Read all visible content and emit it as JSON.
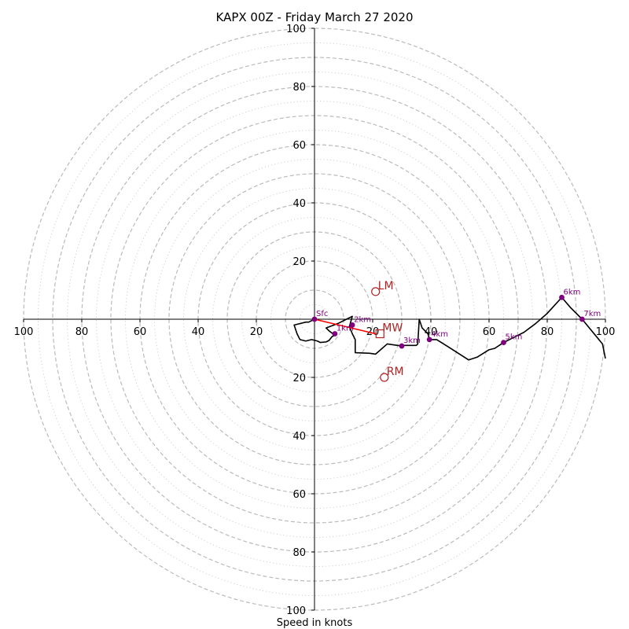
{
  "chart_data": {
    "type": "hodograph",
    "title": "KAPX 00Z - Friday March 27 2020",
    "xlabel": "Speed in knots",
    "range": [
      -100,
      100
    ],
    "dashed_rings": [
      10,
      20,
      30,
      40,
      50,
      60,
      70,
      80,
      90,
      100
    ],
    "dotted_rings": [
      5,
      15,
      25,
      35,
      45,
      55,
      65,
      75,
      85,
      95
    ],
    "x_tick_labels": [
      "100",
      "80",
      "60",
      "40",
      "20",
      "20",
      "40",
      "60",
      "80",
      "100"
    ],
    "x_tick_values": [
      -100,
      -80,
      -60,
      -40,
      -20,
      20,
      40,
      60,
      80,
      100
    ],
    "y_tick_labels": [
      "100",
      "80",
      "60",
      "40",
      "20",
      "20",
      "40",
      "60",
      "80",
      "100"
    ],
    "y_tick_values": [
      100,
      80,
      60,
      40,
      20,
      -20,
      -40,
      -60,
      -80,
      -100
    ],
    "grid": true,
    "trace": [
      [
        0,
        0
      ],
      [
        -2,
        -1
      ],
      [
        -3,
        -1
      ],
      [
        -7,
        -2
      ],
      [
        -6,
        -5
      ],
      [
        -5,
        -7
      ],
      [
        -3,
        -7.5
      ],
      [
        -1,
        -7
      ],
      [
        1,
        -7.5
      ],
      [
        2,
        -8
      ],
      [
        4,
        -7.8
      ],
      [
        5,
        -7.3
      ],
      [
        6,
        -6
      ],
      [
        7,
        -5.5
      ],
      [
        5,
        -4
      ],
      [
        4,
        -3
      ],
      [
        8,
        -1.5
      ],
      [
        11,
        0
      ],
      [
        13,
        1
      ],
      [
        12,
        -2.5
      ],
      [
        13,
        -5
      ],
      [
        14,
        -7
      ],
      [
        14,
        -9
      ],
      [
        14,
        -11.5
      ],
      [
        19,
        -11.7
      ],
      [
        21,
        -12
      ],
      [
        25,
        -8.5
      ],
      [
        30,
        -9.2
      ],
      [
        31,
        -9
      ],
      [
        35,
        -9
      ],
      [
        35.5,
        -8.5
      ],
      [
        36,
        0
      ],
      [
        37,
        -3
      ],
      [
        39,
        -5
      ],
      [
        39.5,
        -7
      ],
      [
        42,
        -7
      ],
      [
        46,
        -9.5
      ],
      [
        53,
        -14
      ],
      [
        56,
        -13
      ],
      [
        60,
        -10.5
      ],
      [
        62,
        -10
      ],
      [
        65,
        -8
      ],
      [
        68,
        -6.5
      ],
      [
        72,
        -4.5
      ],
      [
        76,
        -1.5
      ],
      [
        80,
        2
      ],
      [
        85,
        7.5
      ],
      [
        88,
        4
      ],
      [
        92,
        0
      ],
      [
        99,
        -8.5
      ],
      [
        100,
        -13.5
      ]
    ],
    "height_labels": [
      {
        "label": "Sfc",
        "u": 0,
        "v": 0
      },
      {
        "label": "1km",
        "u": 7,
        "v": -5
      },
      {
        "label": "2km",
        "u": 13,
        "v": -2
      },
      {
        "label": "3km",
        "u": 30,
        "v": -9.2
      },
      {
        "label": "4km",
        "u": 39.5,
        "v": -7
      },
      {
        "label": "5km",
        "u": 65,
        "v": -8
      },
      {
        "label": "6km",
        "u": 85,
        "v": 7.5
      },
      {
        "label": "7km",
        "u": 92,
        "v": 0
      }
    ],
    "shear_vector": {
      "from": [
        0,
        0
      ],
      "to": [
        21,
        -5
      ]
    },
    "motions": [
      {
        "label": "LM",
        "u": 21,
        "v": 9.5,
        "marker": "circle"
      },
      {
        "label": "MW",
        "u": 22.5,
        "v": -5,
        "marker": "square"
      },
      {
        "label": "RM",
        "u": 24,
        "v": -20,
        "marker": "circle"
      }
    ],
    "colors": {
      "trace": "#000000",
      "height_marker": "#800080",
      "motion": "#b22222",
      "shear": "#ff0000",
      "grid": "#bbbbbb"
    }
  }
}
